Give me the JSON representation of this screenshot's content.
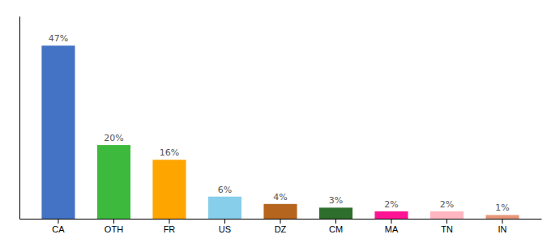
{
  "chart_data": {
    "type": "bar",
    "categories": [
      "CA",
      "OTH",
      "FR",
      "US",
      "DZ",
      "CM",
      "MA",
      "TN",
      "IN"
    ],
    "values": [
      47,
      20,
      16,
      6,
      4,
      3,
      2,
      2,
      1
    ],
    "value_labels": [
      "47%",
      "20%",
      "16%",
      "6%",
      "4%",
      "3%",
      "2%",
      "2%",
      "1%"
    ],
    "colors": [
      "#4472c4",
      "#3dba3d",
      "#ffa500",
      "#87ceeb",
      "#b5651d",
      "#2d6e2d",
      "#ff1493",
      "#ffb6c1",
      "#e8967a"
    ],
    "ylim": [
      0,
      55
    ],
    "data_labels": true,
    "tick_labels": "x"
  }
}
